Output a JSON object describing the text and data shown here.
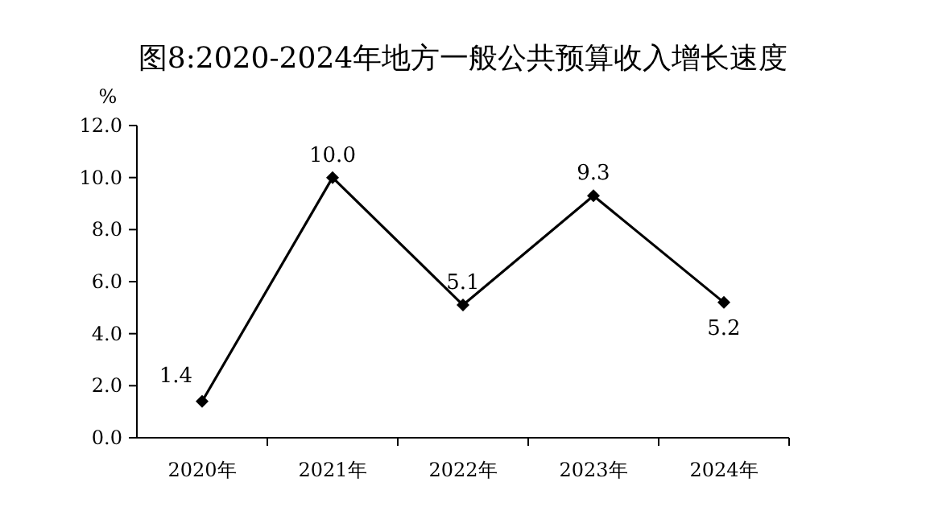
{
  "chart_data": {
    "type": "line",
    "title": "图8:2020-2024年地方一般公共预算收入增长速度",
    "ylabel": "%",
    "categories": [
      "2020年",
      "2021年",
      "2022年",
      "2023年",
      "2024年"
    ],
    "values": [
      1.4,
      10.0,
      5.1,
      9.3,
      5.2
    ],
    "value_labels": [
      "1.4",
      "10.0",
      "5.1",
      "9.3",
      "5.2"
    ],
    "color": "#000000",
    "marker": "diamond",
    "line_style": "solid",
    "ylim": [
      0,
      12
    ],
    "yticks": [
      {
        "value": 0,
        "label": "0.0"
      },
      {
        "value": 2,
        "label": "2.0"
      },
      {
        "value": 4,
        "label": "4.0"
      },
      {
        "value": 6,
        "label": "6.0"
      },
      {
        "value": 8,
        "label": "8.0"
      },
      {
        "value": 10,
        "label": "10.0"
      },
      {
        "value": 12,
        "label": "12.0"
      }
    ]
  }
}
